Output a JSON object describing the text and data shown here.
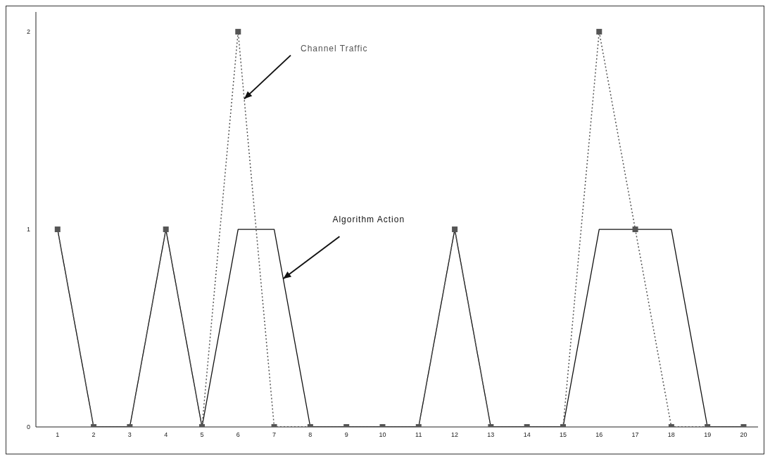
{
  "chart_data": {
    "type": "line",
    "x": [
      1,
      2,
      3,
      4,
      5,
      6,
      7,
      8,
      9,
      10,
      11,
      12,
      13,
      14,
      15,
      16,
      17,
      18,
      19,
      20
    ],
    "series": [
      {
        "name": "Algorithm Action",
        "color": "#111111",
        "line_style": "solid",
        "marker": "none",
        "values": [
          1,
          0,
          0,
          1,
          0,
          1,
          1,
          0,
          0,
          0,
          0,
          1,
          0,
          0,
          0,
          1,
          1,
          1,
          0,
          0
        ]
      },
      {
        "name": "Channel Traffic",
        "color": "#555555",
        "line_style": "dotted",
        "marker": "square",
        "values": [
          1,
          0,
          0,
          1,
          0,
          2,
          0,
          0,
          0,
          0,
          0,
          1,
          0,
          0,
          0,
          2,
          1,
          0,
          0,
          0
        ]
      }
    ],
    "xlim": [
      0.4,
      20.4
    ],
    "xticks": [
      1,
      2,
      3,
      4,
      5,
      6,
      7,
      8,
      9,
      10,
      11,
      12,
      13,
      14,
      15,
      16,
      17,
      18,
      19,
      20
    ],
    "ylim": [
      0,
      2.1
    ],
    "yticks": [
      0,
      1,
      2
    ],
    "grid": false,
    "legend": false
  }
}
